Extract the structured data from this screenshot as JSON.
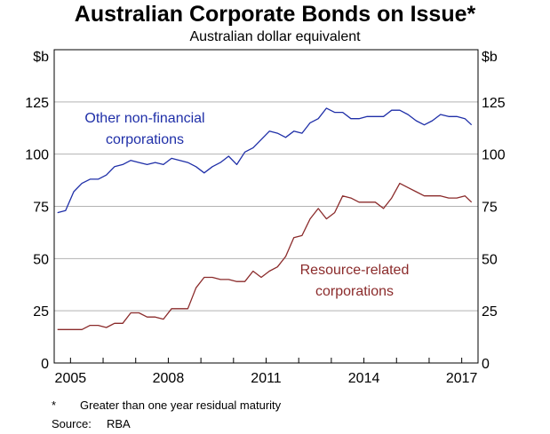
{
  "chart_data": {
    "type": "line",
    "title": "Australian Corporate Bonds on Issue*",
    "subtitle": "Australian dollar equivalent",
    "ylabel_left": "$b",
    "ylabel_right": "$b",
    "ylim": [
      0,
      150
    ],
    "yticks": [
      0,
      25,
      50,
      75,
      100,
      125
    ],
    "xlim": [
      2004.5,
      2017.5
    ],
    "xticks": [
      2005,
      2008,
      2011,
      2014,
      2017
    ],
    "grid": true,
    "series": [
      {
        "name": "Other non-financial corporations",
        "label_lines": [
          "Other non-financial",
          "corporations"
        ],
        "color": "#1f2fa8",
        "x": [
          2004.6,
          2004.85,
          2005.1,
          2005.35,
          2005.6,
          2005.85,
          2006.1,
          2006.35,
          2006.6,
          2006.85,
          2007.1,
          2007.35,
          2007.6,
          2007.85,
          2008.1,
          2008.35,
          2008.6,
          2008.85,
          2009.1,
          2009.35,
          2009.6,
          2009.85,
          2010.1,
          2010.35,
          2010.6,
          2010.85,
          2011.1,
          2011.35,
          2011.6,
          2011.85,
          2012.1,
          2012.35,
          2012.6,
          2012.85,
          2013.1,
          2013.35,
          2013.6,
          2013.85,
          2014.1,
          2014.35,
          2014.6,
          2014.85,
          2015.1,
          2015.35,
          2015.6,
          2015.85,
          2016.1,
          2016.35,
          2016.6,
          2016.85,
          2017.1,
          2017.3
        ],
        "values": [
          72,
          73,
          82,
          86,
          88,
          88,
          90,
          94,
          95,
          97,
          96,
          95,
          96,
          95,
          98,
          97,
          96,
          94,
          91,
          94,
          96,
          99,
          95,
          101,
          103,
          107,
          111,
          110,
          108,
          111,
          110,
          115,
          117,
          122,
          120,
          120,
          117,
          117,
          118,
          118,
          118,
          121,
          121,
          119,
          116,
          114,
          116,
          119,
          118,
          118,
          117,
          114
        ]
      },
      {
        "name": "Resource-related corporations",
        "label_lines": [
          "Resource-related",
          "corporations"
        ],
        "color": "#8b2b2b",
        "x": [
          2004.6,
          2004.85,
          2005.1,
          2005.35,
          2005.6,
          2005.85,
          2006.1,
          2006.35,
          2006.6,
          2006.85,
          2007.1,
          2007.35,
          2007.6,
          2007.85,
          2008.1,
          2008.35,
          2008.6,
          2008.85,
          2009.1,
          2009.35,
          2009.6,
          2009.85,
          2010.1,
          2010.35,
          2010.6,
          2010.85,
          2011.1,
          2011.35,
          2011.6,
          2011.85,
          2012.1,
          2012.35,
          2012.6,
          2012.85,
          2013.1,
          2013.35,
          2013.6,
          2013.85,
          2014.1,
          2014.35,
          2014.6,
          2014.85,
          2015.1,
          2015.35,
          2015.6,
          2015.85,
          2016.1,
          2016.35,
          2016.6,
          2016.85,
          2017.1,
          2017.3
        ],
        "values": [
          16,
          16,
          16,
          16,
          18,
          18,
          17,
          19,
          19,
          24,
          24,
          22,
          22,
          21,
          26,
          26,
          26,
          36,
          41,
          41,
          40,
          40,
          39,
          39,
          44,
          41,
          44,
          46,
          51,
          60,
          61,
          69,
          74,
          69,
          72,
          80,
          79,
          77,
          77,
          77,
          74,
          79,
          86,
          84,
          82,
          80,
          80,
          80,
          79,
          79,
          80,
          77
        ]
      }
    ]
  },
  "notes": {
    "asterisk": "*",
    "asterisk_text": "Greater than one year residual maturity",
    "source_label": "Source:",
    "source_value": "RBA"
  }
}
